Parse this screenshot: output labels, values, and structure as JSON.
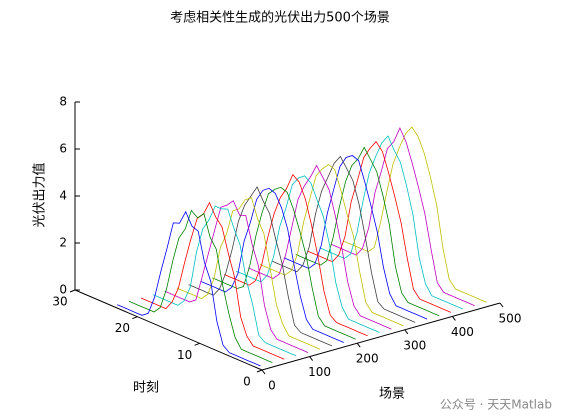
{
  "chart_data": {
    "type": "line3d",
    "title": "考虑相关性生成的光伏出力500个场景",
    "xlabel": "场景",
    "ylabel": "时刻",
    "zlabel": "光伏出力值",
    "xlim": [
      0,
      500
    ],
    "xticks": [
      0,
      100,
      200,
      300,
      400,
      500
    ],
    "ylim": [
      0,
      30
    ],
    "yticks": [
      0,
      10,
      20,
      30
    ],
    "zlim": [
      0,
      8
    ],
    "zticks": [
      0,
      2,
      4,
      6,
      8
    ],
    "hours": [
      1,
      2,
      3,
      4,
      5,
      6,
      7,
      8,
      9,
      10,
      11,
      12,
      13,
      14,
      15,
      16,
      17,
      18,
      19,
      20,
      21,
      22,
      23,
      24
    ],
    "series": [
      {
        "x": 10,
        "color": "#0000ff",
        "values": [
          0,
          0,
          0,
          0,
          0,
          0,
          0.2,
          1.1,
          2.7,
          3.4,
          4.6,
          4.7,
          5.2,
          4.6,
          4.5,
          3.3,
          2.2,
          1.0,
          0.2,
          0,
          0,
          0,
          0,
          0
        ]
      },
      {
        "x": 35,
        "color": "#008000",
        "values": [
          0,
          0,
          0,
          0,
          0,
          0,
          0.4,
          1.3,
          2.4,
          3.8,
          4.2,
          5.1,
          4.8,
          5.0,
          4.1,
          3.6,
          2.5,
          1.2,
          0.3,
          0,
          0,
          0,
          0,
          0
        ]
      },
      {
        "x": 60,
        "color": "#ff0000",
        "values": [
          0,
          0,
          0,
          0,
          0,
          0,
          0.3,
          1.0,
          2.6,
          3.5,
          4.5,
          4.8,
          5.3,
          4.7,
          4.4,
          3.4,
          2.3,
          1.1,
          0.4,
          0,
          0,
          0,
          0,
          0
        ]
      },
      {
        "x": 85,
        "color": "#00bfbf",
        "values": [
          0,
          0,
          0,
          0,
          0,
          0,
          0.2,
          1.4,
          2.3,
          3.7,
          4.3,
          5.0,
          4.9,
          4.9,
          4.2,
          3.7,
          2.6,
          1.0,
          0.3,
          0,
          0,
          0,
          0,
          0
        ]
      },
      {
        "x": 110,
        "color": "#bf00bf",
        "values": [
          0,
          0,
          0,
          0,
          0,
          0,
          0.3,
          1.2,
          2.8,
          3.6,
          4.7,
          4.6,
          5.1,
          4.8,
          4.6,
          3.5,
          2.4,
          1.3,
          0.2,
          0,
          0,
          0,
          0,
          0
        ]
      },
      {
        "x": 135,
        "color": "#bfbf00",
        "values": [
          0,
          0,
          0,
          0,
          0,
          0,
          0.4,
          1.1,
          2.5,
          3.9,
          4.4,
          5.2,
          5.0,
          4.5,
          4.3,
          3.2,
          2.5,
          1.1,
          0.3,
          0,
          0,
          0,
          0,
          0
        ]
      },
      {
        "x": 160,
        "color": "#404040",
        "values": [
          0,
          0,
          0,
          0,
          0,
          0,
          0.2,
          1.3,
          2.6,
          3.5,
          4.5,
          4.9,
          5.4,
          4.9,
          4.4,
          3.6,
          2.3,
          1.2,
          0.4,
          0,
          0,
          0,
          0,
          0
        ]
      },
      {
        "x": 185,
        "color": "#0000ff",
        "values": [
          0,
          0,
          0,
          0,
          0,
          0,
          0.3,
          1.2,
          2.4,
          3.8,
          4.6,
          5.1,
          5.2,
          5.0,
          4.5,
          3.4,
          2.5,
          1.0,
          0.3,
          0,
          0,
          0,
          0,
          0
        ]
      },
      {
        "x": 210,
        "color": "#008000",
        "values": [
          0,
          0,
          0,
          0,
          0,
          0,
          0.3,
          1.4,
          2.7,
          3.6,
          4.4,
          5.0,
          5.1,
          4.9,
          4.6,
          3.7,
          2.6,
          1.2,
          0.2,
          0,
          0,
          0,
          0,
          0
        ]
      },
      {
        "x": 235,
        "color": "#ff0000",
        "values": [
          0,
          0,
          0,
          0,
          0,
          0,
          0.2,
          1.1,
          2.5,
          3.7,
          4.7,
          5.3,
          5.5,
          4.8,
          4.3,
          3.5,
          2.4,
          1.1,
          0.3,
          0,
          0,
          0,
          0,
          0
        ]
      },
      {
        "x": 260,
        "color": "#00bfbf",
        "values": [
          0,
          0,
          0,
          0,
          0,
          0,
          0.4,
          1.3,
          2.8,
          3.9,
          4.5,
          5.1,
          5.3,
          5.1,
          4.7,
          3.6,
          2.7,
          1.3,
          0.4,
          0,
          0,
          0,
          0,
          0
        ]
      },
      {
        "x": 285,
        "color": "#bf00bf",
        "values": [
          0,
          0,
          0,
          0,
          0,
          0,
          0.3,
          1.2,
          2.6,
          3.8,
          4.8,
          5.2,
          5.6,
          5.0,
          4.5,
          3.8,
          2.5,
          1.2,
          0.3,
          0,
          0,
          0,
          0,
          0
        ]
      },
      {
        "x": 310,
        "color": "#bfbf00",
        "values": [
          0,
          0,
          0,
          0,
          0,
          0,
          0.3,
          1.5,
          2.9,
          3.7,
          4.6,
          5.4,
          5.5,
          5.2,
          4.8,
          3.7,
          2.6,
          1.1,
          0.3,
          0,
          0,
          0,
          0,
          0
        ]
      },
      {
        "x": 335,
        "color": "#404040",
        "values": [
          0,
          0,
          0,
          0,
          0,
          0,
          0.2,
          1.3,
          2.7,
          4.0,
          4.9,
          5.3,
          5.7,
          5.3,
          4.6,
          3.9,
          2.8,
          1.3,
          0.4,
          0,
          0,
          0,
          0,
          0
        ]
      },
      {
        "x": 360,
        "color": "#0000ff",
        "values": [
          0,
          0,
          0,
          0,
          0,
          0,
          0.4,
          1.4,
          2.8,
          3.8,
          4.7,
          5.5,
          5.6,
          5.4,
          4.9,
          3.8,
          2.7,
          1.2,
          0.3,
          0,
          0,
          0,
          0,
          0
        ]
      },
      {
        "x": 385,
        "color": "#008000",
        "values": [
          0,
          0,
          0,
          0,
          0,
          0,
          0.3,
          1.3,
          3.0,
          4.1,
          5.0,
          5.4,
          5.8,
          5.2,
          4.8,
          4.0,
          2.8,
          1.4,
          0.3,
          0,
          0,
          0,
          0,
          0
        ]
      },
      {
        "x": 410,
        "color": "#ff0000",
        "values": [
          0,
          0,
          0,
          0,
          0,
          0,
          0.3,
          1.5,
          2.9,
          3.9,
          4.8,
          5.6,
          5.9,
          5.5,
          5.0,
          3.9,
          2.9,
          1.3,
          0.4,
          0,
          0,
          0,
          0,
          0
        ]
      },
      {
        "x": 435,
        "color": "#00bfbf",
        "values": [
          0,
          0,
          0,
          0,
          0,
          0,
          0.4,
          1.4,
          3.1,
          4.2,
          5.1,
          5.5,
          6.0,
          5.6,
          4.9,
          4.1,
          2.8,
          1.3,
          0.3,
          0,
          0,
          0,
          0,
          0
        ]
      },
      {
        "x": 460,
        "color": "#bf00bf",
        "values": [
          0,
          0,
          0,
          0,
          0,
          0,
          0.3,
          1.6,
          3.0,
          4.0,
          4.9,
          5.7,
          6.2,
          5.5,
          5.1,
          4.0,
          3.0,
          1.4,
          0.4,
          0,
          0,
          0,
          0,
          0
        ]
      },
      {
        "x": 485,
        "color": "#bfbf00",
        "values": [
          0,
          0,
          0,
          0,
          0,
          0,
          0.3,
          1.5,
          3.2,
          4.3,
          5.2,
          5.8,
          6.1,
          5.7,
          5.0,
          4.2,
          2.9,
          1.5,
          0.3,
          0,
          0,
          0,
          0,
          0
        ]
      }
    ]
  },
  "watermark": "公众号 · 天天Matlab"
}
